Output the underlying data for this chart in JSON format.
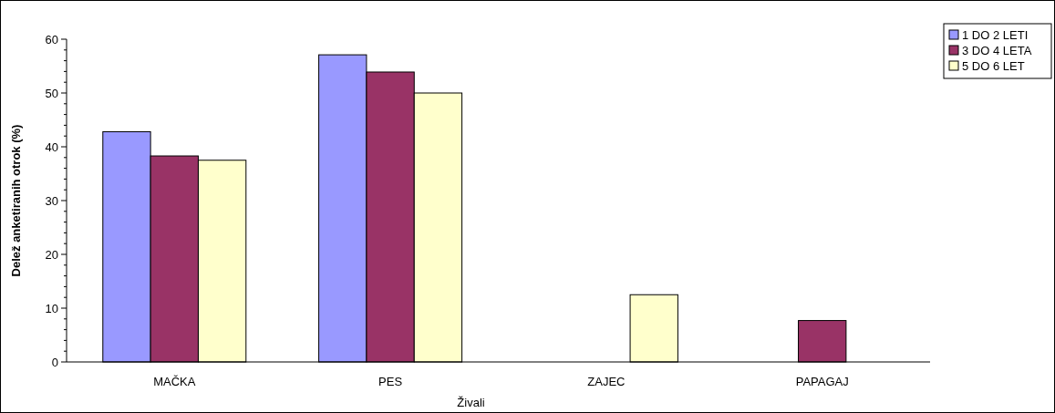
{
  "chart_data": {
    "type": "bar",
    "xlabel": "Živali",
    "ylabel": "Delež anketiranih otrok (%)",
    "categories": [
      "MAČKA",
      "PES",
      "ZAJEC",
      "PAPAGAJ"
    ],
    "series": [
      {
        "name": "1 DO 2 LETI",
        "color": "#9999ff",
        "values": [
          42.8,
          57.1,
          0,
          0
        ]
      },
      {
        "name": "3 DO 4 LETA",
        "color": "#993366",
        "values": [
          38.3,
          53.9,
          0,
          7.7
        ]
      },
      {
        "name": "5 DO 6 LET",
        "color": "#ffffcc",
        "values": [
          37.5,
          50.0,
          12.5,
          0
        ]
      }
    ],
    "ylim": [
      0,
      60
    ],
    "yticks": [
      0,
      10,
      20,
      30,
      40,
      50,
      60
    ],
    "grid": false,
    "legend": "top right"
  }
}
